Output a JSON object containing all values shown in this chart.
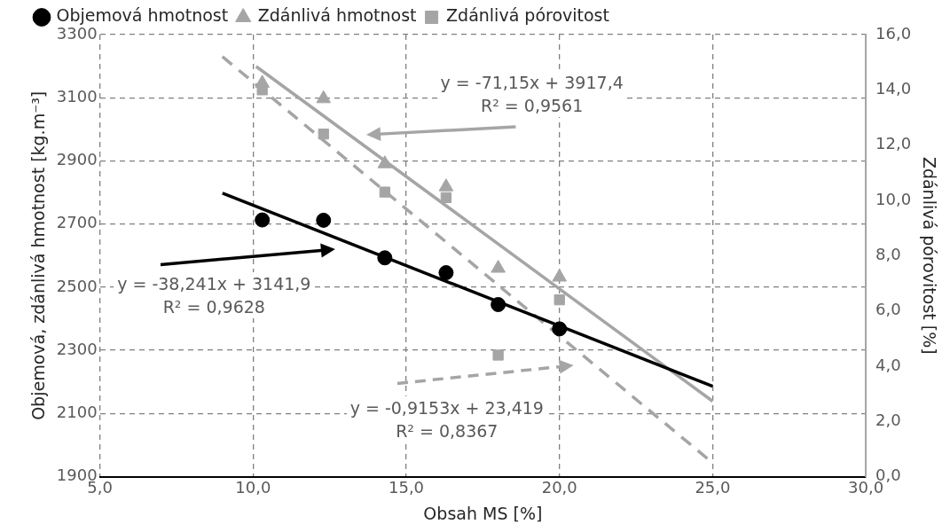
{
  "chart_data": {
    "type": "scatter",
    "xlabel": "Obsah MS [%]",
    "ylabel": "Objemová, zdánlivá hmotnost [kg.m⁻³]",
    "y2label": "Zdánlivá pórovitost [%]",
    "xlim": [
      5,
      30
    ],
    "xticks": [
      {
        "value": 5,
        "label": "5,0"
      },
      {
        "value": 10,
        "label": "10,0"
      },
      {
        "value": 15,
        "label": "15,0"
      },
      {
        "value": 20,
        "label": "20,0"
      },
      {
        "value": 25,
        "label": "25,0"
      },
      {
        "value": 30,
        "label": "30,0"
      }
    ],
    "ylim": [
      1900,
      3300
    ],
    "yticks": [
      1900,
      2100,
      2300,
      2500,
      2700,
      2900,
      3100,
      3300
    ],
    "y2lim": [
      0,
      16
    ],
    "y2ticks": [
      {
        "value": 0,
        "label": "0,0"
      },
      {
        "value": 2,
        "label": "2,0"
      },
      {
        "value": 4,
        "label": "4,0"
      },
      {
        "value": 6,
        "label": "6,0"
      },
      {
        "value": 8,
        "label": "8,0"
      },
      {
        "value": 10,
        "label": "10,0"
      },
      {
        "value": 12,
        "label": "12,0"
      },
      {
        "value": 14,
        "label": "14,0"
      },
      {
        "value": 16,
        "label": "16,0"
      }
    ],
    "grid": true,
    "legend": "top",
    "series": [
      {
        "name": "Objemová hmotnost",
        "color": "#000000",
        "marker": "circle",
        "x": [
          10.3,
          12.3,
          14.3,
          16.3,
          18,
          20
        ],
        "values": [
          2713,
          2712,
          2593,
          2546,
          2445,
          2368
        ]
      },
      {
        "name": "Zdánlivá hmotnost",
        "color": "#a5a5a5",
        "marker": "triangle",
        "x": [
          10.3,
          12.3,
          14.3,
          16.3,
          18,
          20
        ],
        "values": [
          3146,
          3097,
          2891,
          2818,
          2560,
          2532
        ]
      },
      {
        "name": "Zdánlivá pórovitost",
        "color": "#a5a5a5",
        "marker": "square",
        "axis": "y2",
        "x": [
          10.3,
          12.3,
          14.3,
          16.3,
          18,
          20
        ],
        "values": [
          14.0,
          12.4,
          10.3,
          10.1,
          4.4,
          6.4
        ]
      },
      {
        "type": "line",
        "color": "#000000",
        "x": [
          9,
          25
        ],
        "values": [
          2798,
          2186
        ]
      },
      {
        "type": "line",
        "color": "#a5a5a5",
        "x": [
          10.1,
          25
        ],
        "values": [
          3199,
          2139
        ]
      },
      {
        "type": "line",
        "color": "#a5a5a5",
        "axis": "y2",
        "line_style": "dashed",
        "x": [
          9,
          25
        ],
        "values": [
          15.2,
          0.5
        ]
      }
    ],
    "annotations": [
      "y = -71,15x + 3917,4\nR² = 0,9561",
      "y = -38,241x + 3141,9\nR² = 0,9628",
      "y = -0,9153x + 23,419\nR² = 0,8367"
    ]
  }
}
